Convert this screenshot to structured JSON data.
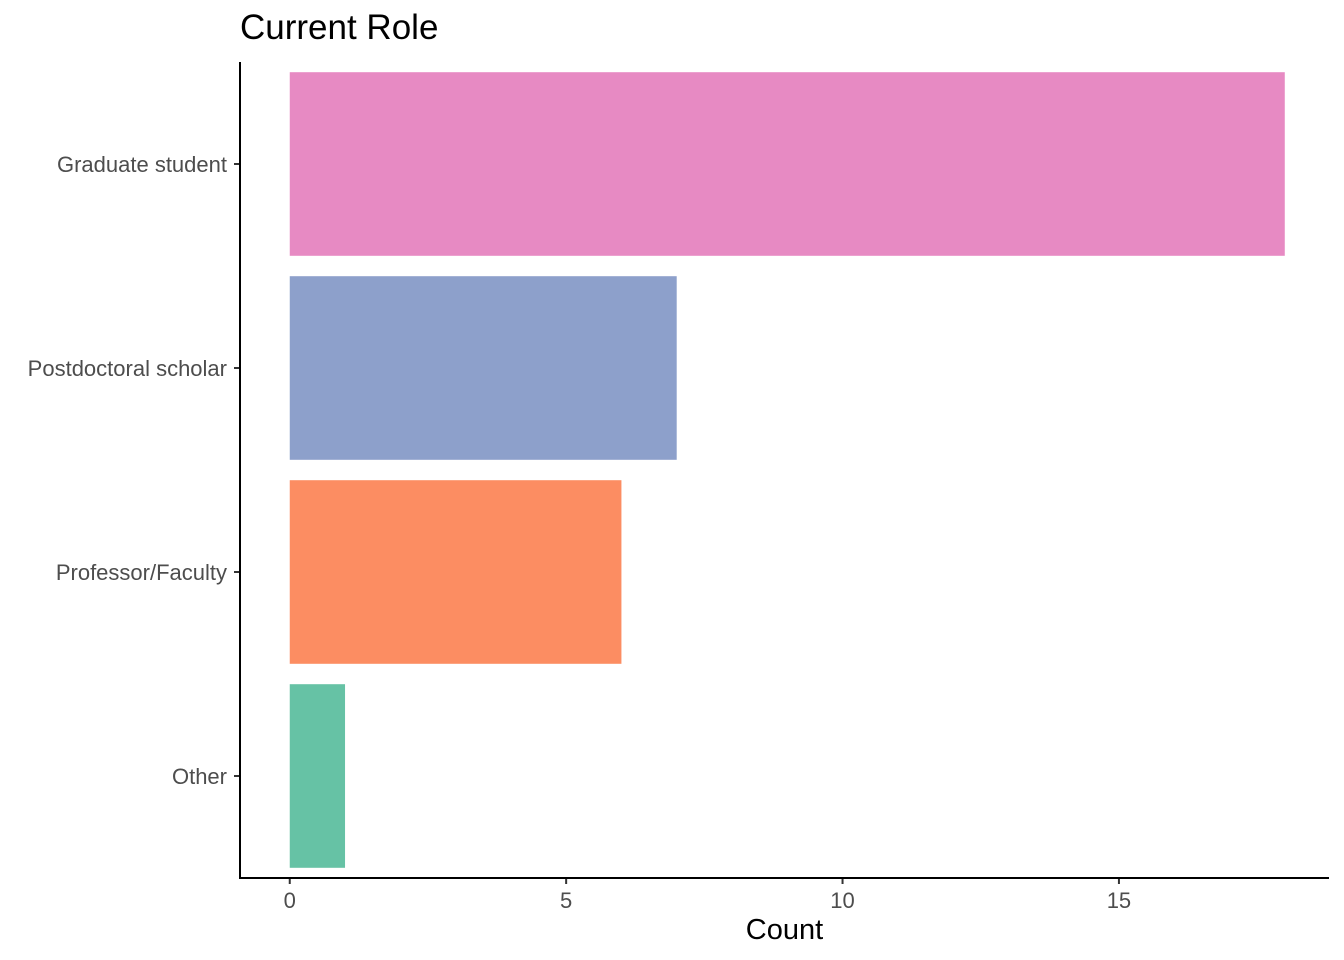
{
  "chart_data": {
    "type": "bar",
    "orientation": "horizontal",
    "title": "Current Role",
    "xlabel": "Count",
    "ylabel": "",
    "categories": [
      "Graduate student",
      "Postdoctoral scholar",
      "Professor/Faculty",
      "Other"
    ],
    "values": [
      18,
      7,
      6,
      1
    ],
    "colors": [
      "#e78ac3",
      "#8da0cb",
      "#fc8d62",
      "#66c2a5"
    ],
    "xlim": [
      -0.9,
      18.8
    ],
    "xticks": [
      0,
      5,
      10,
      15
    ],
    "xtick_labels": [
      "0",
      "5",
      "10",
      "15"
    ],
    "grid": false,
    "legend": "none"
  }
}
